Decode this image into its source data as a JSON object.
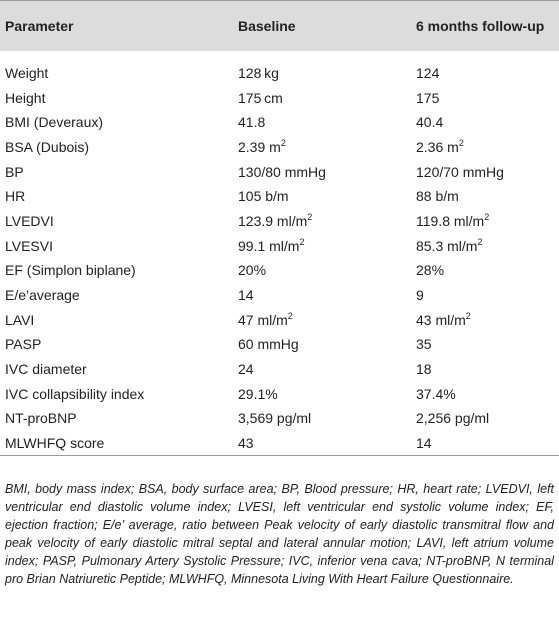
{
  "table": {
    "headers": [
      "Parameter",
      "Baseline",
      "6 months follow-up"
    ],
    "rows": [
      {
        "parameter": "Weight",
        "baseline": "128 kg",
        "followup": "124"
      },
      {
        "parameter": "Height",
        "baseline": "175 cm",
        "followup": "175"
      },
      {
        "parameter": "BMI (Deveraux)",
        "baseline": "41.8",
        "followup": "40.4"
      },
      {
        "parameter": "BSA (Dubois)",
        "baseline": "2.39 m",
        "baseline_sup": "2",
        "followup": "2.36 m",
        "followup_sup": "2"
      },
      {
        "parameter": "BP",
        "baseline": "130/80 mmHg",
        "followup": "120/70 mmHg"
      },
      {
        "parameter": "HR",
        "baseline": "105 b/m",
        "followup": "88 b/m"
      },
      {
        "parameter": "LVEDVI",
        "baseline": "123.9 ml/m",
        "baseline_sup": "2",
        "followup": "119.8 ml/m",
        "followup_sup": "2"
      },
      {
        "parameter": "LVESVI",
        "baseline": "99.1 ml/m",
        "baseline_sup": "2",
        "followup": "85.3 ml/m",
        "followup_sup": "2"
      },
      {
        "parameter": "EF (Simplon biplane)",
        "baseline": "20%",
        "followup": "28%"
      },
      {
        "parameter": "E/e’average",
        "baseline": "14",
        "followup": "9"
      },
      {
        "parameter": "LAVI",
        "baseline": "47 ml/m",
        "baseline_sup": "2",
        "followup": "43 ml/m",
        "followup_sup": "2"
      },
      {
        "parameter": "PASP",
        "baseline": "60 mmHg",
        "followup": "35"
      },
      {
        "parameter": "IVC diameter",
        "baseline": "24",
        "followup": "18"
      },
      {
        "parameter": "IVC collapsibility index",
        "baseline": "29.1%",
        "followup": "37.4%"
      },
      {
        "parameter": "NT-proBNP",
        "baseline": "3,569 pg/ml",
        "followup": "2,256 pg/ml"
      },
      {
        "parameter": "MLWHFQ score",
        "baseline": "43",
        "followup": "14"
      }
    ]
  },
  "footnote": "BMI, body mass index; BSA, body surface area; BP, Blood pressure; HR, heart rate; LVEDVI, left ventricular end diastolic volume index; LVESI, left ventricular end systolic volume index; EF, ejection fraction; E/e’ average, ratio between Peak velocity of early diastolic transmitral flow and peak velocity of early diastolic mitral septal and lateral annular motion; LAVI, left atrium volume index; PASP, Pulmonary Artery Systolic Pressure; IVC, inferior vena cava; NT-proBNP, N terminal pro Brian Natriuretic Peptide; MLWHFQ, Minnesota Living With Heart Failure Questionnaire."
}
